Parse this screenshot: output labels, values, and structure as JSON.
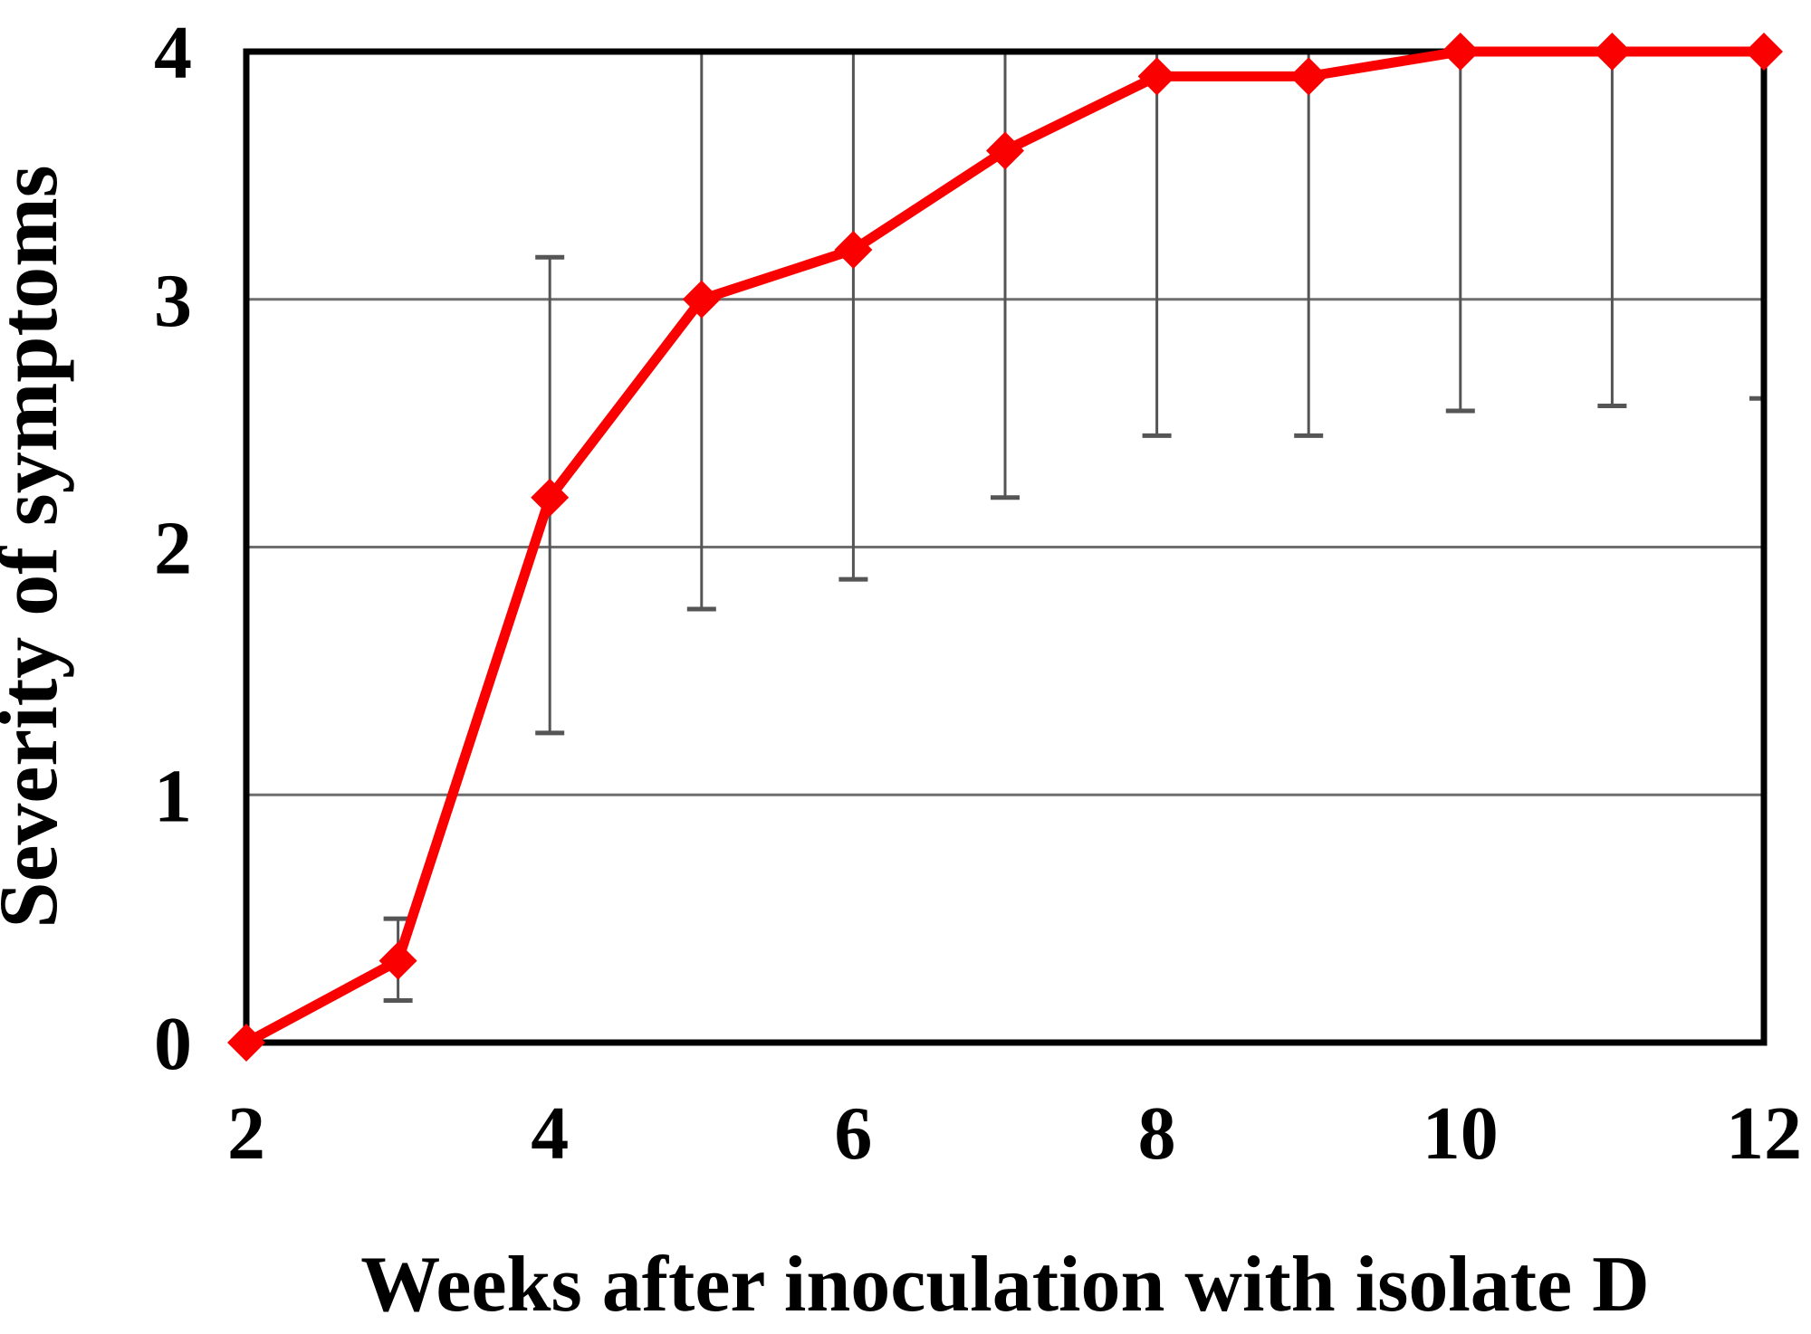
{
  "figure": {
    "background": "#ffffff",
    "description": "Line chart of disease symptom severity over time after inoculation"
  },
  "chart_data": {
    "type": "line",
    "title": "",
    "xlabel": "Weeks after inoculation with isolate D",
    "ylabel": "Severity of symptoms",
    "xlim": [
      2,
      12
    ],
    "ylim": [
      0,
      4
    ],
    "x_ticks": [
      2,
      4,
      6,
      8,
      10,
      12
    ],
    "y_ticks": [
      0,
      1,
      2,
      3,
      4
    ],
    "gridlines_y": [
      1,
      2,
      3
    ],
    "legend": "none",
    "style": {
      "series_color": "#fa0000",
      "grid_color": "#6e6e6e",
      "error_bar_color": "#555555",
      "border_color": "#000000",
      "text_color": "#000000",
      "marker": "diamond"
    },
    "series": [
      {
        "name": "severity",
        "color": "#fa0000",
        "marker": "diamond",
        "x": [
          2,
          3,
          4,
          5,
          6,
          7,
          8,
          9,
          10,
          11,
          12
        ],
        "y": [
          0,
          0.33,
          2.2,
          3.0,
          3.2,
          3.6,
          3.9,
          3.9,
          4.0,
          4.0,
          4.0
        ],
        "error_low": [
          null,
          0.17,
          1.25,
          1.75,
          1.87,
          2.2,
          2.45,
          2.45,
          2.55,
          2.57,
          2.6
        ],
        "error_high": [
          null,
          0.5,
          3.17,
          4,
          4,
          4,
          4,
          4,
          4,
          4,
          4
        ],
        "error_high_clipped_at_top": [
          false,
          false,
          false,
          true,
          true,
          true,
          true,
          true,
          true,
          true,
          true
        ]
      }
    ]
  }
}
